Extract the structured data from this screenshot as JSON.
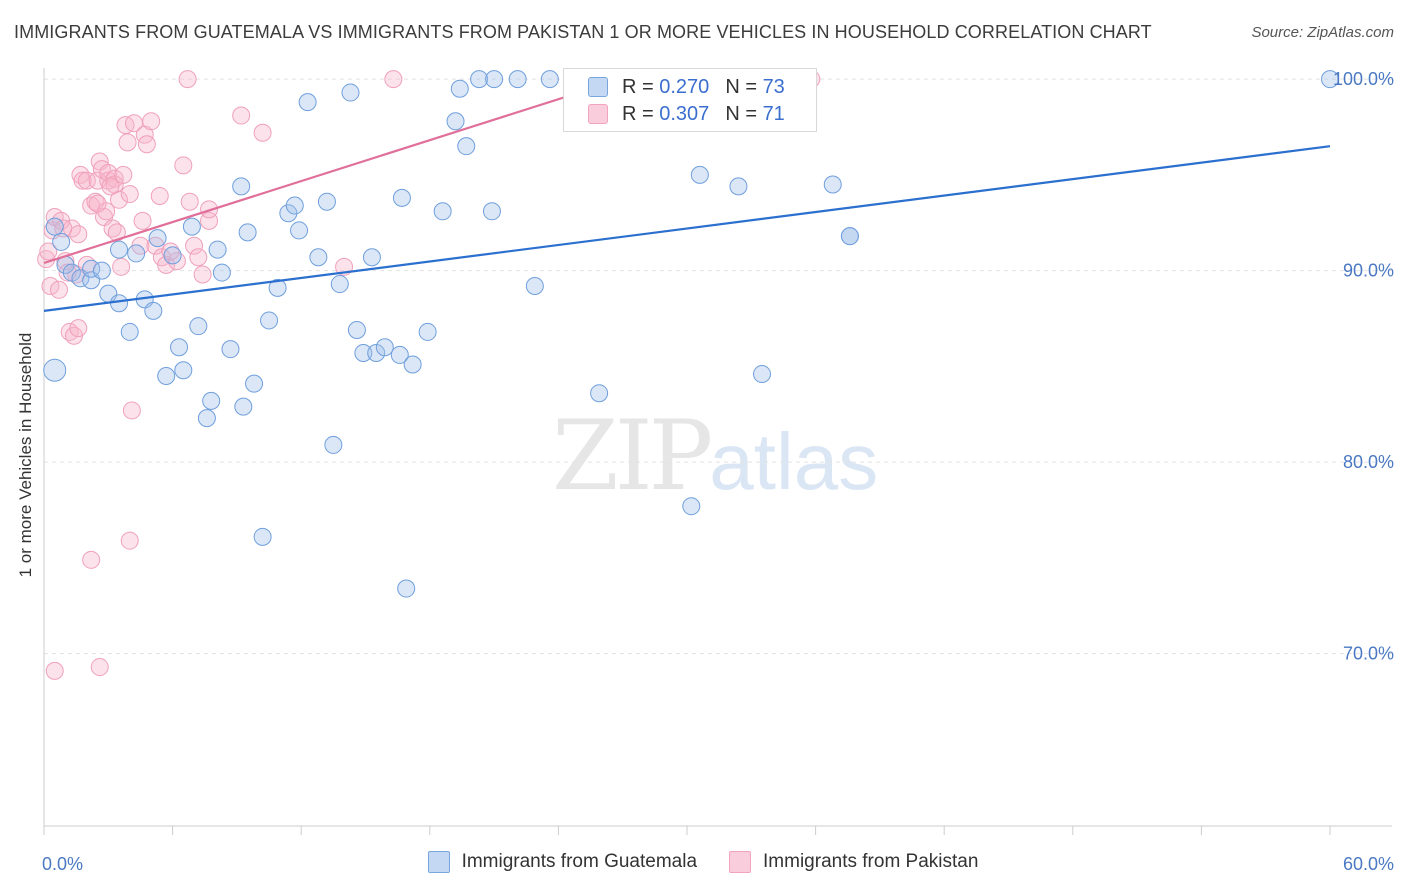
{
  "header": {
    "title": "IMMIGRANTS FROM GUATEMALA VS IMMIGRANTS FROM PAKISTAN 1 OR MORE VEHICLES IN HOUSEHOLD CORRELATION CHART",
    "source": "Source: ZipAtlas.com"
  },
  "watermark": {
    "zip": "ZIP",
    "atlas": "atlas"
  },
  "legend": {
    "guatemala": {
      "r_label": "R =",
      "r_value": "0.270",
      "n_label": "N =",
      "n_value": "73"
    },
    "pakistan": {
      "r_label": "R =",
      "r_value": "0.307",
      "n_label": "N =",
      "n_value": "71"
    }
  },
  "chart_data": {
    "type": "scatter",
    "title": "IMMIGRANTS FROM GUATEMALA VS IMMIGRANTS FROM PAKISTAN 1 OR MORE VEHICLES IN HOUSEHOLD CORRELATION CHART",
    "xlabel": "",
    "ylabel": "1 or more Vehicles in Household",
    "xlim": [
      0,
      60
    ],
    "ylim": [
      61,
      101
    ],
    "x_tick_labels": [
      "0.0%",
      "60.0%"
    ],
    "y_ticks": [
      70,
      80,
      90,
      100
    ],
    "y_tick_labels": [
      "70.0%",
      "80.0%",
      "90.0%",
      "100.0%"
    ],
    "grid": true,
    "legend_position": "top-center",
    "colors": {
      "guatemala": "#7aa6e0",
      "pakistan": "#f2a3bd",
      "guatemala_line": "#2b6fcf",
      "pakistan_line": "#e0709a"
    },
    "series": [
      {
        "name": "Immigrants from Guatemala",
        "r": 0.27,
        "n": 73,
        "trend": {
          "x": [
            0,
            60
          ],
          "y": [
            87.9,
            96.5
          ]
        },
        "points": [
          [
            0.5,
            84.8
          ],
          [
            0.5,
            92.3
          ],
          [
            0.8,
            91.5
          ],
          [
            1,
            90.3
          ],
          [
            1.3,
            89.9
          ],
          [
            1.7,
            89.6
          ],
          [
            2.2,
            89.5
          ],
          [
            2.2,
            90.1
          ],
          [
            2.7,
            90
          ],
          [
            3,
            88.8
          ],
          [
            3.5,
            88.3
          ],
          [
            3.5,
            91.1
          ],
          [
            4,
            86.8
          ],
          [
            4.3,
            90.9
          ],
          [
            4.7,
            88.5
          ],
          [
            5.1,
            87.9
          ],
          [
            5.3,
            91.7
          ],
          [
            5.7,
            84.5
          ],
          [
            6,
            90.8
          ],
          [
            6.3,
            86
          ],
          [
            6.5,
            84.8
          ],
          [
            6.9,
            92.3
          ],
          [
            7.2,
            87.1
          ],
          [
            7.6,
            82.3
          ],
          [
            7.8,
            83.2
          ],
          [
            8.1,
            91.1
          ],
          [
            8.3,
            89.9
          ],
          [
            8.7,
            85.9
          ],
          [
            9.2,
            94.4
          ],
          [
            9.3,
            82.9
          ],
          [
            9.5,
            92
          ],
          [
            9.8,
            84.1
          ],
          [
            10.2,
            76.1
          ],
          [
            10.5,
            87.4
          ],
          [
            10.9,
            89.1
          ],
          [
            11.4,
            93
          ],
          [
            11.7,
            93.4
          ],
          [
            11.9,
            92.1
          ],
          [
            12.3,
            98.8
          ],
          [
            12.8,
            90.7
          ],
          [
            13.2,
            93.6
          ],
          [
            13.5,
            80.9
          ],
          [
            13.8,
            89.3
          ],
          [
            14.3,
            99.3
          ],
          [
            14.6,
            86.9
          ],
          [
            14.9,
            85.7
          ],
          [
            15.3,
            90.7
          ],
          [
            15.5,
            85.7
          ],
          [
            15.9,
            86
          ],
          [
            16.6,
            85.6
          ],
          [
            16.7,
            93.8
          ],
          [
            16.9,
            73.4
          ],
          [
            17.2,
            85.1
          ],
          [
            17.9,
            86.8
          ],
          [
            18.6,
            93.1
          ],
          [
            19.2,
            97.8
          ],
          [
            19.4,
            99.5
          ],
          [
            19.7,
            96.5
          ],
          [
            20.3,
            100
          ],
          [
            20.9,
            93.1
          ],
          [
            21,
            100
          ],
          [
            22.1,
            100
          ],
          [
            22.9,
            89.2
          ],
          [
            23.6,
            100
          ],
          [
            25.9,
            83.6
          ],
          [
            30.2,
            77.7
          ],
          [
            30.6,
            95
          ],
          [
            32.4,
            94.4
          ],
          [
            33.5,
            84.6
          ],
          [
            36.8,
            94.5
          ],
          [
            37.6,
            91.8
          ],
          [
            60,
            100
          ],
          [
            37.6,
            91.8
          ]
        ]
      },
      {
        "name": "Immigrants from Pakistan",
        "r": 0.307,
        "n": 71,
        "trend": {
          "x": [
            0,
            27.5
          ],
          "y": [
            90.4,
            100.2
          ]
        },
        "points": [
          [
            0.1,
            90.6
          ],
          [
            0.2,
            91
          ],
          [
            0.3,
            89.2
          ],
          [
            0.4,
            92.1
          ],
          [
            0.5,
            92.8
          ],
          [
            0.5,
            69.1
          ],
          [
            0.7,
            89
          ],
          [
            0.8,
            92.6
          ],
          [
            1,
            90.5
          ],
          [
            1.2,
            86.8
          ],
          [
            1.3,
            92.2
          ],
          [
            1.4,
            86.6
          ],
          [
            1.5,
            89.8
          ],
          [
            1.6,
            87
          ],
          [
            1.6,
            91.9
          ],
          [
            1.7,
            95
          ],
          [
            1.8,
            94.7
          ],
          [
            2,
            94.7
          ],
          [
            2,
            90.3
          ],
          [
            2.2,
            93.4
          ],
          [
            2.2,
            74.9
          ],
          [
            2.4,
            93.6
          ],
          [
            2.5,
            94.7
          ],
          [
            2.6,
            95.7
          ],
          [
            2.6,
            69.3
          ],
          [
            2.7,
            95.3
          ],
          [
            2.8,
            92.8
          ],
          [
            2.9,
            93.1
          ],
          [
            3,
            94.7
          ],
          [
            3,
            95.1
          ],
          [
            3.2,
            92.2
          ],
          [
            3.3,
            94.8
          ],
          [
            3.3,
            94.5
          ],
          [
            3.4,
            92
          ],
          [
            3.5,
            93.7
          ],
          [
            3.6,
            90.2
          ],
          [
            3.7,
            95
          ],
          [
            3.8,
            97.6
          ],
          [
            3.9,
            96.7
          ],
          [
            4,
            94
          ],
          [
            4,
            75.9
          ],
          [
            4.1,
            82.7
          ],
          [
            4.2,
            97.7
          ],
          [
            4.5,
            91.3
          ],
          [
            4.6,
            92.6
          ],
          [
            4.7,
            97.1
          ],
          [
            4.8,
            96.6
          ],
          [
            5,
            97.8
          ],
          [
            5.2,
            91.3
          ],
          [
            5.4,
            93.9
          ],
          [
            5.5,
            90.7
          ],
          [
            5.7,
            90.3
          ],
          [
            6.2,
            90.5
          ],
          [
            6.5,
            95.5
          ],
          [
            6.7,
            100
          ],
          [
            6.8,
            93.6
          ],
          [
            7,
            91.3
          ],
          [
            7.2,
            90.7
          ],
          [
            7.4,
            89.8
          ],
          [
            7.7,
            92.6
          ],
          [
            7.7,
            93.2
          ],
          [
            9.2,
            98.1
          ],
          [
            10.2,
            97.2
          ],
          [
            14,
            90.2
          ],
          [
            16.3,
            100
          ],
          [
            35.8,
            100
          ],
          [
            2.5,
            93.5
          ],
          [
            1.1,
            89.9
          ],
          [
            0.9,
            92.2
          ],
          [
            3.1,
            94.4
          ],
          [
            5.9,
            91
          ]
        ]
      }
    ]
  },
  "x_axis": {
    "min_label": "0.0%",
    "max_label": "60.0%"
  },
  "bottom_legend": {
    "guatemala_label": "Immigrants from Guatemala",
    "pakistan_label": "Immigrants from Pakistan"
  }
}
